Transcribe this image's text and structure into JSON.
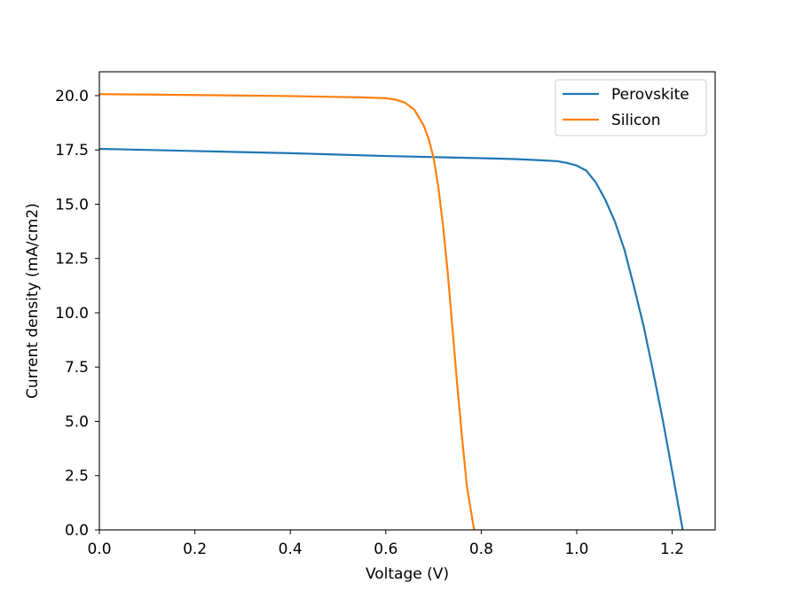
{
  "chart_data": {
    "type": "line",
    "title": "",
    "xlabel": "Voltage (V)",
    "ylabel": "Current density (mA/cm2)",
    "xlim": [
      0.0,
      1.29
    ],
    "ylim": [
      0.0,
      21.1
    ],
    "xticks": [
      0.0,
      0.2,
      0.4,
      0.6,
      0.8,
      1.0,
      1.2
    ],
    "xtick_labels": [
      "0.0",
      "0.2",
      "0.4",
      "0.6",
      "0.8",
      "1.0",
      "1.2"
    ],
    "yticks": [
      0.0,
      2.5,
      5.0,
      7.5,
      10.0,
      12.5,
      15.0,
      17.5,
      20.0
    ],
    "ytick_labels": [
      "0.0",
      "2.5",
      "5.0",
      "7.5",
      "10.0",
      "12.5",
      "15.0",
      "17.5",
      "20.0"
    ],
    "grid": false,
    "legend_position": "top-right",
    "series": [
      {
        "name": "Perovskite",
        "color": "#1f77b4",
        "x": [
          0.0,
          0.2,
          0.4,
          0.6,
          0.8,
          0.87,
          0.93,
          0.96,
          0.98,
          1.0,
          1.02,
          1.04,
          1.06,
          1.08,
          1.1,
          1.12,
          1.14,
          1.16,
          1.18,
          1.2,
          1.222
        ],
        "y": [
          17.55,
          17.45,
          17.35,
          17.22,
          17.12,
          17.08,
          17.02,
          16.98,
          16.9,
          16.78,
          16.55,
          16.0,
          15.2,
          14.2,
          12.9,
          11.2,
          9.4,
          7.3,
          5.1,
          2.7,
          0.0
        ]
      },
      {
        "name": "Silicon",
        "color": "#ff7f0e",
        "x": [
          0.0,
          0.2,
          0.4,
          0.55,
          0.6,
          0.62,
          0.64,
          0.66,
          0.68,
          0.69,
          0.7,
          0.71,
          0.72,
          0.73,
          0.74,
          0.75,
          0.76,
          0.77,
          0.785
        ],
        "y": [
          20.07,
          20.03,
          19.98,
          19.92,
          19.88,
          19.82,
          19.68,
          19.35,
          18.6,
          18.0,
          17.15,
          15.8,
          14.0,
          11.8,
          9.2,
          6.6,
          4.2,
          2.0,
          0.0
        ]
      }
    ]
  }
}
